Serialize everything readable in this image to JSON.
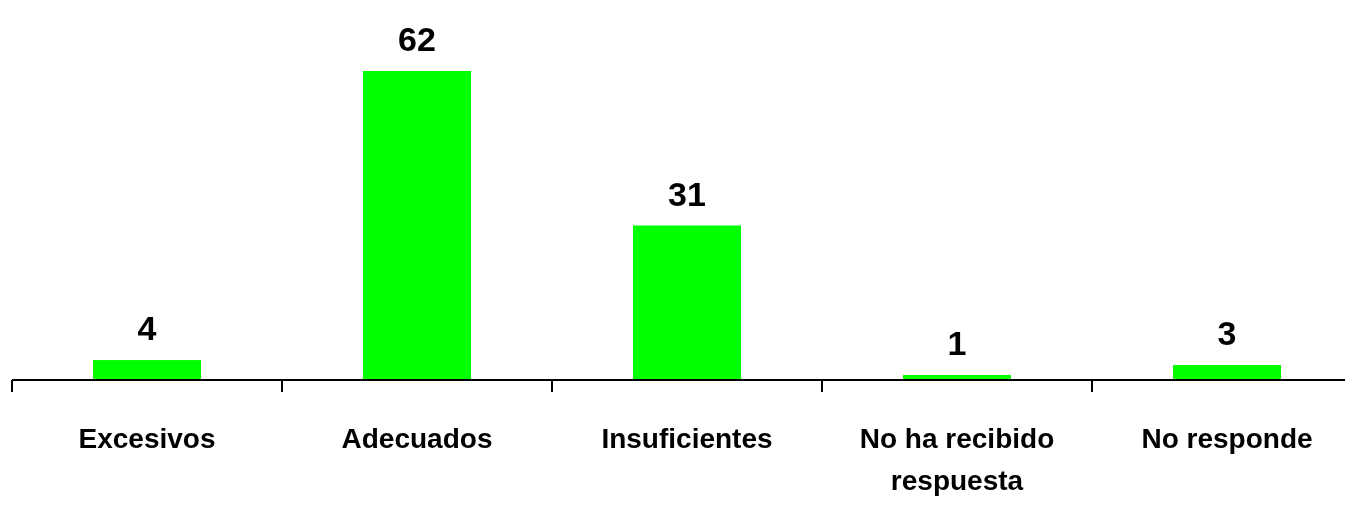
{
  "chart_data": {
    "type": "bar",
    "categories": [
      "Excesivos",
      "Adecuados",
      "Insuficientes",
      "No ha recibido respuesta",
      "No responde"
    ],
    "values": [
      4,
      62,
      31,
      1,
      3
    ],
    "color": "#00ff00",
    "data_labels": true
  }
}
